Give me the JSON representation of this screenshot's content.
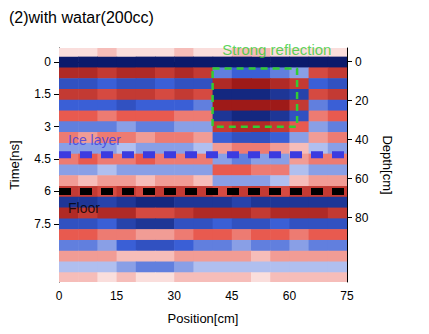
{
  "chart_data": {
    "type": "heatmap",
    "title": "(2)with watar(200cc)",
    "x_label": "Position[cm]",
    "y_label": "Time[ns]",
    "y2_label": "Depth[cm]",
    "xlim": [
      0,
      75
    ],
    "xticks": [
      0,
      15,
      30,
      45,
      60,
      75
    ],
    "ylim": [
      -0.65,
      10.2
    ],
    "yticks": [
      0,
      1.5,
      3,
      4.5,
      6,
      7.5
    ],
    "y2lim": [
      -7,
      113
    ],
    "y2ticks": [
      0,
      20,
      40,
      60,
      80
    ],
    "grid": false,
    "zlim": [
      -10,
      10
    ],
    "x": [
      2.5,
      7.5,
      12.5,
      17.5,
      22.5,
      27.5,
      32.5,
      37.5,
      42.5,
      47.5,
      52.5,
      57.5,
      62.5,
      67.5,
      72.5
    ],
    "y": [
      -0.5,
      0,
      0.5,
      1,
      1.5,
      2,
      2.5,
      3,
      3.5,
      4,
      4.5,
      5,
      5.5,
      6,
      6.5,
      7,
      7.5,
      8,
      8.5,
      9,
      9.5,
      10
    ],
    "cells": [
      [
        1,
        1,
        2,
        1,
        1,
        1,
        2,
        1,
        1,
        2,
        2,
        1,
        1,
        1,
        1
      ],
      [
        -10,
        -10,
        -10,
        -10,
        -10,
        -10,
        -10,
        -10,
        -10,
        -10,
        -10,
        -10,
        -10,
        -10,
        -10
      ],
      [
        8,
        8,
        7,
        8,
        8,
        7,
        8,
        7,
        -4,
        -5,
        -5,
        -4,
        -3,
        6,
        7
      ],
      [
        -6,
        -6,
        -5,
        -6,
        -6,
        -5,
        -6,
        -6,
        8,
        9,
        9,
        8,
        7,
        -5,
        -6
      ],
      [
        7,
        7,
        6,
        7,
        7,
        6,
        7,
        6,
        -9,
        -9,
        -9,
        -8,
        -7,
        6,
        7
      ],
      [
        -5,
        -5,
        -5,
        -6,
        -5,
        -5,
        -5,
        -4,
        9,
        9,
        9,
        9,
        7,
        -4,
        -5
      ],
      [
        5,
        5,
        4,
        5,
        5,
        5,
        4,
        4,
        -8,
        -9,
        -9,
        -8,
        -6,
        4,
        5
      ],
      [
        -4,
        -4,
        -4,
        -3,
        -4,
        -4,
        -3,
        -3,
        7,
        8,
        8,
        7,
        5,
        -3,
        -4
      ],
      [
        4,
        3,
        4,
        4,
        3,
        4,
        4,
        3,
        -5,
        -6,
        -6,
        -5,
        -3,
        3,
        4
      ],
      [
        -3,
        -3,
        -3,
        -2,
        -3,
        -3,
        -3,
        -2,
        3,
        4,
        4,
        3,
        2,
        -2,
        -3
      ],
      [
        4,
        5,
        4,
        4,
        5,
        4,
        4,
        4,
        -3,
        -4,
        -3,
        -3,
        3,
        4,
        4
      ],
      [
        -3,
        -3,
        -2,
        -3,
        -3,
        -3,
        -3,
        -3,
        5,
        5,
        4,
        4,
        -2,
        -3,
        -3
      ],
      [
        3,
        2,
        3,
        3,
        2,
        3,
        3,
        2,
        -3,
        -3,
        -3,
        -2,
        2,
        3,
        3
      ],
      [
        7,
        7,
        6,
        7,
        6,
        7,
        7,
        7,
        6,
        7,
        7,
        6,
        7,
        7,
        7
      ],
      [
        -8,
        -8,
        -7,
        -8,
        -9,
        -9,
        -8,
        -8,
        -8,
        -7,
        -8,
        -8,
        -8,
        -8,
        -8
      ],
      [
        8,
        7,
        8,
        8,
        6,
        6,
        7,
        8,
        8,
        8,
        7,
        8,
        8,
        8,
        7
      ],
      [
        -6,
        -6,
        -5,
        -7,
        -8,
        -8,
        -6,
        -6,
        -5,
        -6,
        -6,
        -5,
        -6,
        -6,
        -6
      ],
      [
        5,
        5,
        4,
        4,
        3,
        3,
        4,
        5,
        5,
        4,
        5,
        5,
        4,
        5,
        5
      ],
      [
        -4,
        -4,
        -3,
        -5,
        -6,
        -6,
        -5,
        -4,
        -4,
        -3,
        -4,
        -4,
        -3,
        -4,
        -4
      ],
      [
        3,
        3,
        3,
        2,
        2,
        2,
        3,
        3,
        3,
        3,
        2,
        3,
        3,
        3,
        3
      ],
      [
        -2,
        -2,
        -2,
        -3,
        -4,
        -4,
        -3,
        -2,
        -2,
        -2,
        -2,
        -2,
        -2,
        -2,
        -2
      ],
      [
        2,
        2,
        1,
        2,
        1,
        1,
        2,
        2,
        2,
        2,
        1,
        2,
        2,
        2,
        2
      ]
    ],
    "annotations": [
      {
        "text": "Strong reflection",
        "color": "#33cc33",
        "box": {
          "x": [
            40,
            62
          ],
          "y": [
            0.3,
            3.0
          ]
        }
      },
      {
        "text": "Ice layer",
        "color": "#3b3be0",
        "y": 4.3
      },
      {
        "text": "Floor",
        "color": "#000000",
        "y": 6.0
      }
    ]
  }
}
